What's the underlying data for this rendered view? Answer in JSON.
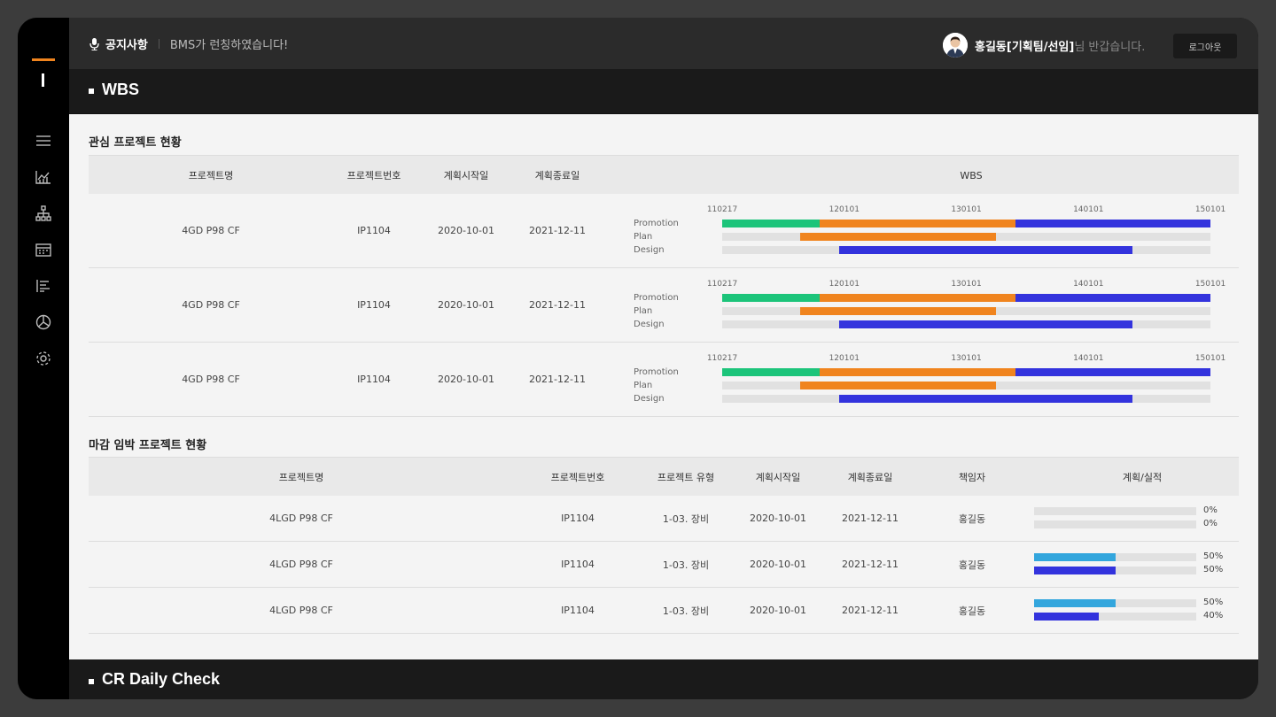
{
  "colors": {
    "accent": "#f0841e",
    "green": "#1cc47a",
    "orange": "#f0841e",
    "blue": "#3333dd",
    "cyan": "#33a6dd"
  },
  "topbar": {
    "notice_title": "공지사항",
    "notice_text": "BMS가 런칭하였습니다!",
    "user_name": "홍길동[기획팀/선임]",
    "user_suffix": "님 반갑습니다.",
    "logout_label": "로그아웃"
  },
  "sidebar": {
    "icons": [
      "menu-icon",
      "chart-icon",
      "org-chart-icon",
      "calendar-icon",
      "list-icon",
      "pie-chart-icon",
      "settings-icon"
    ]
  },
  "wbs_section": {
    "title": "WBS",
    "interest": {
      "title": "관심 프로젝트 현황",
      "headers": {
        "name": "프로젝트명",
        "number": "프로젝트번호",
        "start": "계획시작일",
        "end": "계획종료일",
        "wbs": "WBS"
      },
      "rows": [
        {
          "name": "4GD P98 CF",
          "number": "IP1104",
          "start": "2020-10-01",
          "end": "2021-12-11"
        },
        {
          "name": "4GD P98 CF",
          "number": "IP1104",
          "start": "2020-10-01",
          "end": "2021-12-11"
        },
        {
          "name": "4GD P98 CF",
          "number": "IP1104",
          "start": "2020-10-01",
          "end": "2021-12-11"
        }
      ],
      "ticks": [
        "110217",
        "120101",
        "130101",
        "140101",
        "150101"
      ],
      "bar_labels": [
        "Promotion",
        "Plan",
        "Design"
      ],
      "bars": [
        [
          {
            "from": 0,
            "to": 0.2,
            "color": "green"
          },
          {
            "from": 0.2,
            "to": 0.6,
            "color": "orange"
          },
          {
            "from": 0.6,
            "to": 1.0,
            "color": "blue"
          }
        ],
        [
          {
            "from": 0.16,
            "to": 0.56,
            "color": "orange"
          }
        ],
        [
          {
            "from": 0.24,
            "to": 0.84,
            "color": "blue"
          }
        ]
      ]
    },
    "deadline": {
      "title": "마감 임박 프로젝트 현황",
      "headers": {
        "name": "프로젝트명",
        "number": "프로젝트번호",
        "type": "프로젝트 유형",
        "start": "계획시작일",
        "end": "계획종료일",
        "owner": "책임자",
        "progress": "계획/실적"
      },
      "rows": [
        {
          "name": "4LGD P98 CF",
          "number": "IP1104",
          "type": "1-03. 장비",
          "start": "2020-10-01",
          "end": "2021-12-11",
          "owner": "홍길동",
          "plan": 0,
          "actual": 0,
          "plan_label": "0%",
          "actual_label": "0%"
        },
        {
          "name": "4LGD P98 CF",
          "number": "IP1104",
          "type": "1-03. 장비",
          "start": "2020-10-01",
          "end": "2021-12-11",
          "owner": "홍길동",
          "plan": 0.5,
          "actual": 0.5,
          "plan_label": "50%",
          "actual_label": "50%"
        },
        {
          "name": "4LGD P98 CF",
          "number": "IP1104",
          "type": "1-03. 장비",
          "start": "2020-10-01",
          "end": "2021-12-11",
          "owner": "홍길동",
          "plan": 0.5,
          "actual": 0.4,
          "plan_label": "50%",
          "actual_label": "40%"
        }
      ]
    }
  },
  "cr_section": {
    "title": "CR Daily Check"
  }
}
